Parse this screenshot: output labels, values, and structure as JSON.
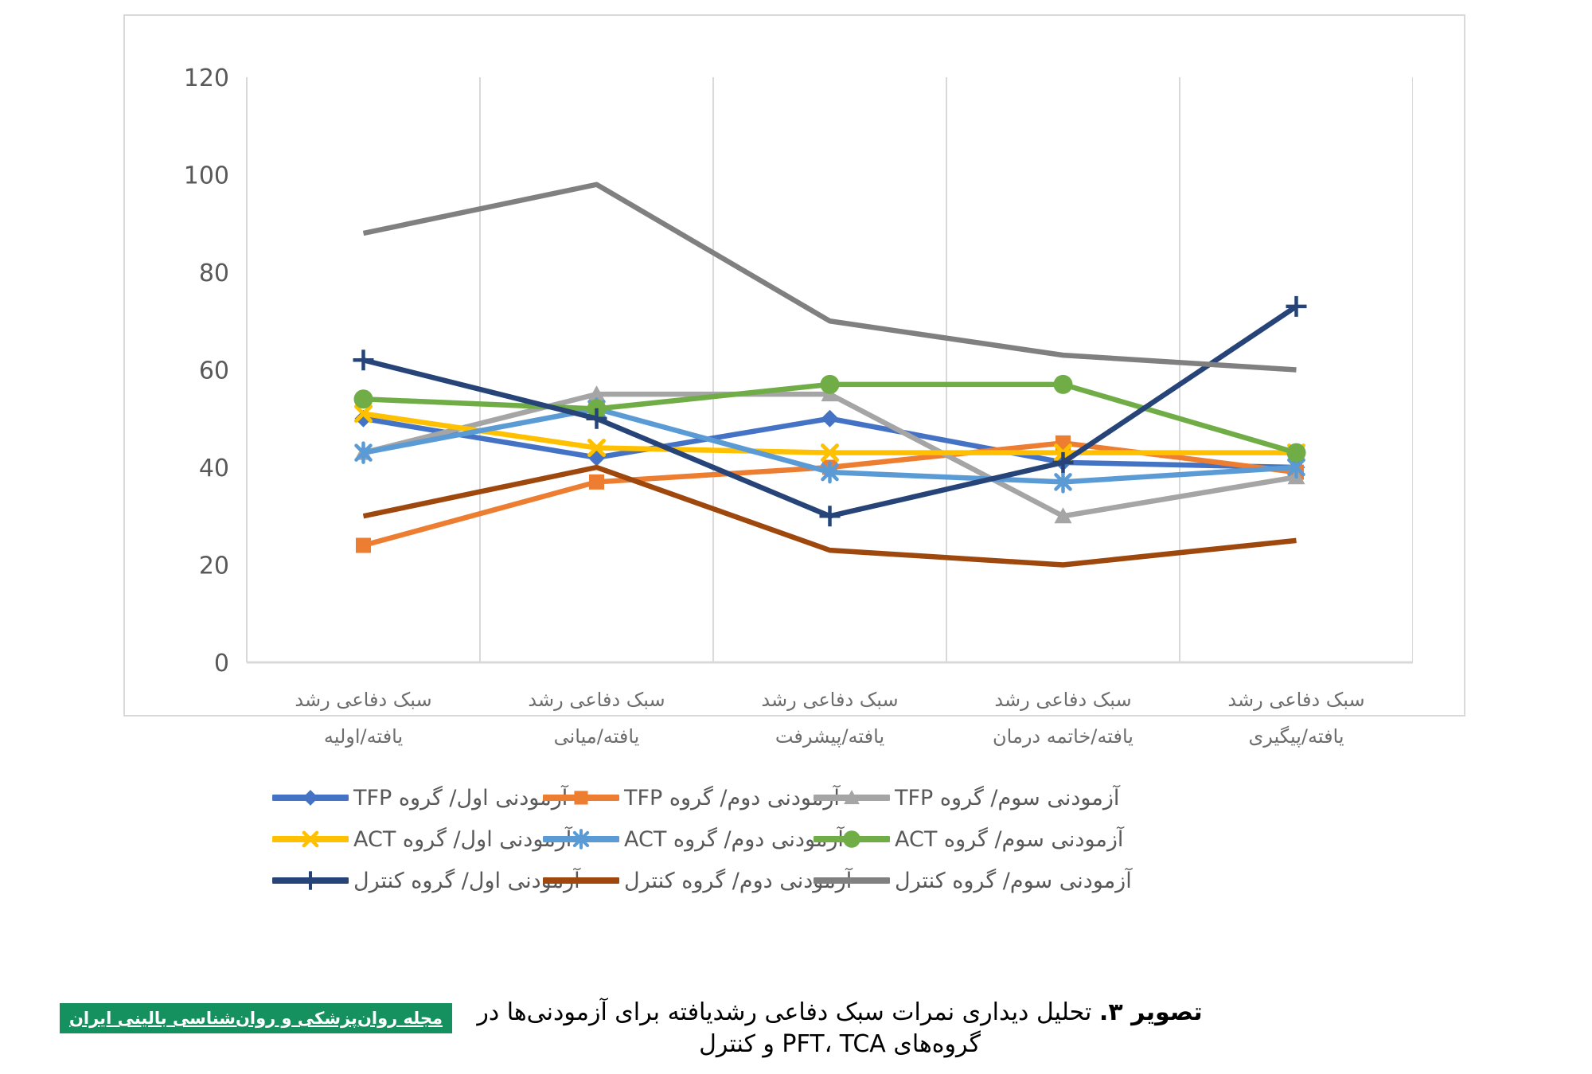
{
  "figure": {
    "caption_bold": "تصویر ۳.",
    "caption_text": " تحلیل دیداری نمرات سبک دفاعی رشدیافته برای آزمودنی‌ها در گروه‌های PFT، TCA و کنترل",
    "journal_logo_text": "مجله روان‌پزشکی و روان‌شناسی بالینی ایران",
    "logo_bg_color": "#15905f"
  },
  "chart_data": {
    "type": "line",
    "title": "",
    "xlabel": "",
    "ylabel": "",
    "ylim": [
      0,
      120
    ],
    "yticks": [
      0,
      20,
      40,
      60,
      80,
      100,
      120
    ],
    "grid": "vertical-category-gridlines",
    "gridline_color": "#d9d9d9",
    "legend_position": "bottom",
    "categories": [
      "سبک دفاعی رشد یافته/اولیه",
      "سبک دفاعی رشد یافته/میانی",
      "سبک دفاعی رشد یافته/پیشرفت",
      "سبک دفاعی رشد یافته/خاتمه درمان",
      "سبک دفاعی رشد یافته/پیگیری"
    ],
    "categories_line1": [
      "سبک دفاعی رشد",
      "سبک دفاعی رشد",
      "سبک دفاعی رشد",
      "سبک دفاعی رشد",
      "سبک دفاعی رشد"
    ],
    "categories_line2": [
      "یافته/اولیه",
      "یافته/میانی",
      "یافته/پیشرفت",
      "یافته/خاتمه درمان",
      "یافته/پیگیری"
    ],
    "series": [
      {
        "name": "آزمودنی اول/ گروه TFP",
        "color": "#4472C4",
        "marker": "diamond",
        "values": [
          50,
          42,
          50,
          41,
          40
        ]
      },
      {
        "name": "آزمودنی دوم/ گروه TFP",
        "color": "#ED7D31",
        "marker": "square",
        "values": [
          24,
          37,
          40,
          45,
          39
        ]
      },
      {
        "name": "آزمودنی سوم/ گروه TFP",
        "color": "#A5A5A5",
        "marker": "triangle",
        "values": [
          43,
          55,
          55,
          30,
          38
        ]
      },
      {
        "name": "آزمودنی اول/ گروه ACT",
        "color": "#FFC000",
        "marker": "x",
        "values": [
          51,
          44,
          43,
          43,
          43
        ]
      },
      {
        "name": "آزمودنی دوم/ گروه ACT",
        "color": "#5B9BD5",
        "marker": "asterisk",
        "values": [
          43,
          52,
          39,
          37,
          40
        ]
      },
      {
        "name": "آزمودنی سوم/ گروه ACT",
        "color": "#70AD47",
        "marker": "circle",
        "values": [
          54,
          52,
          57,
          57,
          43
        ]
      },
      {
        "name": "آزمودنی اول/ گروه کنترل",
        "color": "#264478",
        "marker": "plus",
        "values": [
          62,
          50,
          30,
          41,
          73
        ]
      },
      {
        "name": "آزمودنی دوم/ گروه کنترل",
        "color": "#9E480E",
        "marker": "none",
        "values": [
          30,
          40,
          23,
          20,
          25
        ]
      },
      {
        "name": "آزمودنی سوم/ گروه کنترل",
        "color": "#808080",
        "marker": "none",
        "values": [
          88,
          98,
          70,
          63,
          60
        ]
      }
    ]
  }
}
